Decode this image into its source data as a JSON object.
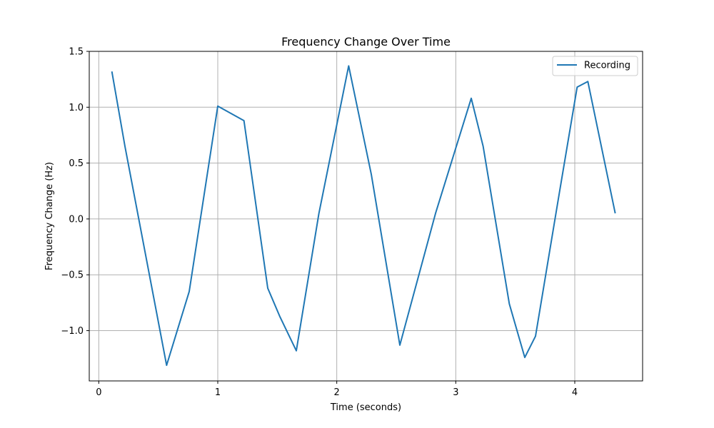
{
  "chart_data": {
    "type": "line",
    "title": "Frequency Change Over Time",
    "xlabel": "Time (seconds)",
    "ylabel": "Frequency Change (Hz)",
    "xlim": [
      -0.08,
      4.57
    ],
    "ylim": [
      -1.45,
      1.5
    ],
    "xticks": [
      0,
      1,
      2,
      3,
      4
    ],
    "xtick_labels": [
      "0",
      "1",
      "2",
      "3",
      "4"
    ],
    "yticks": [
      -1.0,
      -0.5,
      0.0,
      0.5,
      1.0,
      1.5
    ],
    "ytick_labels": [
      "−1.0",
      "−0.5",
      "0.0",
      "0.5",
      "1.0",
      "1.5"
    ],
    "grid": true,
    "legend_position": "top-right",
    "series": [
      {
        "name": "Recording",
        "color": "#1f77b4",
        "x": [
          0.11,
          0.22,
          0.57,
          0.76,
          1.0,
          1.22,
          1.42,
          1.52,
          1.66,
          1.85,
          2.1,
          2.29,
          2.53,
          2.83,
          3.13,
          3.23,
          3.45,
          3.58,
          3.67,
          3.87,
          4.02,
          4.11,
          4.34
        ],
        "y": [
          1.32,
          0.65,
          -1.31,
          -0.65,
          1.01,
          0.88,
          -0.62,
          -0.87,
          -1.18,
          0.05,
          1.37,
          0.4,
          -1.13,
          0.05,
          1.08,
          0.65,
          -0.76,
          -1.24,
          -1.05,
          0.23,
          1.18,
          1.23,
          0.05
        ]
      }
    ]
  }
}
